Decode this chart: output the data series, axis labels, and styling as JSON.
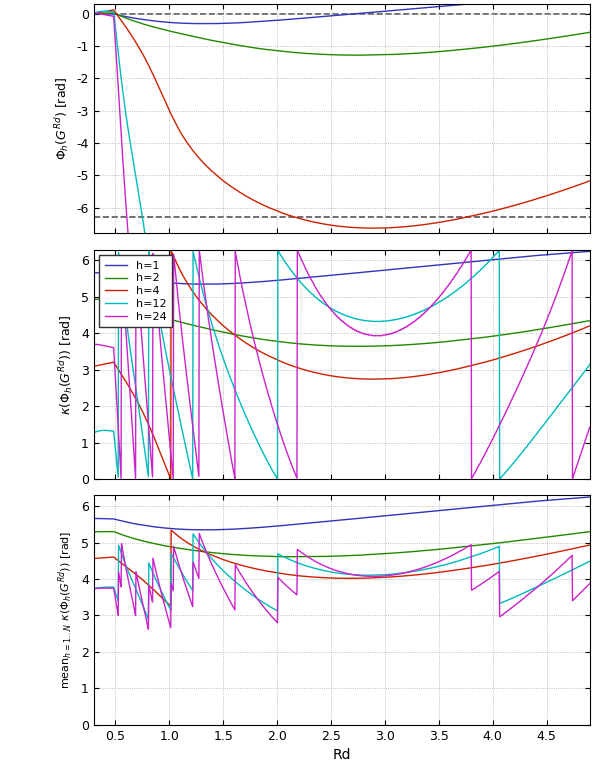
{
  "title": "",
  "xlabel": "Rd",
  "colors": {
    "h1": "#3333bb",
    "h2": "#228800",
    "h4": "#cc2200",
    "h12": "#00bbbb",
    "h24": "#cc22cc"
  },
  "harmonics": [
    1,
    2,
    4,
    12,
    24
  ],
  "Rd_min": 0.3,
  "Rd_max": 4.9,
  "plot1_ylim": [
    -6.8,
    0.3
  ],
  "plot2_ylim": [
    0,
    6.3
  ],
  "plot3_ylim": [
    0,
    6.3
  ],
  "plot1_yticks": [
    0,
    -1,
    -2,
    -3,
    -4,
    -5,
    -6
  ],
  "plot2_yticks": [
    0,
    1,
    2,
    3,
    4,
    5,
    6
  ],
  "plot3_yticks": [
    0,
    1,
    2,
    3,
    4,
    5,
    6
  ],
  "legend_labels": [
    "h=1",
    "h=2",
    "h=4",
    "h=12",
    "h=24"
  ],
  "xticks": [
    0.5,
    1.0,
    1.5,
    2.0,
    2.5,
    3.0,
    3.5,
    4.0,
    4.5
  ],
  "background_color": "#ffffff",
  "N_pts": 8192,
  "N_Rd": 1200
}
